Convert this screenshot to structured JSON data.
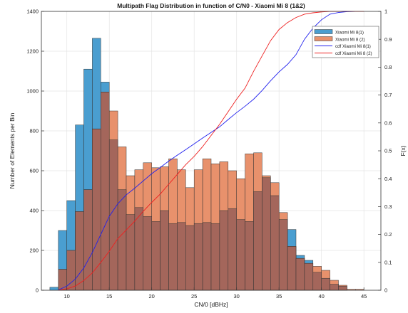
{
  "chart_data": {
    "type": "bar",
    "title": "Multipath Flag Distribution in function of C/N0 - Xiaomi Mi 8 (1&2)",
    "xlabel": "CN/0 [dBHz]",
    "ylabel": "Number of Elements per Bin",
    "y2label": "F(x)",
    "xlim": [
      7,
      47
    ],
    "ylim": [
      0,
      1400
    ],
    "y2lim": [
      0,
      1
    ],
    "xticks": [
      10,
      15,
      20,
      25,
      30,
      35,
      40,
      45
    ],
    "yticks": [
      0,
      200,
      400,
      600,
      800,
      1000,
      1200,
      1400
    ],
    "y2ticks": [
      0,
      0.1,
      0.2,
      0.3,
      0.4,
      0.5,
      0.6,
      0.7,
      0.8,
      0.9,
      1
    ],
    "grid": true,
    "legend_position": "top-right",
    "colors": {
      "hist1_fill": "#4a9ed0",
      "hist2_fill": "#e8916c",
      "overlap_fill": "#a4665b",
      "bar_edge": "#333333",
      "cdf1": "#2020ee",
      "cdf2": "#ee2020",
      "grid": "#e4e4e4",
      "axis": "#333333"
    },
    "bin_edges": [
      8,
      9,
      10,
      11,
      12,
      13,
      14,
      15,
      16,
      17,
      18,
      19,
      20,
      21,
      22,
      23,
      24,
      25,
      26,
      27,
      28,
      29,
      30,
      31,
      32,
      33,
      34,
      35,
      36,
      37,
      38,
      39,
      40,
      41,
      42,
      43,
      44,
      45
    ],
    "series": [
      {
        "name": "Xiaomi Mi 8(1)",
        "kind": "histogram",
        "values": [
          15,
          300,
          450,
          830,
          1110,
          1265,
          1045,
          755,
          505,
          380,
          415,
          370,
          345,
          400,
          335,
          340,
          325,
          335,
          340,
          335,
          400,
          410,
          355,
          345,
          495,
          565,
          475,
          355,
          305,
          175,
          150,
          90,
          60,
          30,
          20,
          0,
          0
        ]
      },
      {
        "name": "Xiaomi Mi 8 (2)",
        "kind": "histogram",
        "values": [
          0,
          105,
          200,
          395,
          505,
          810,
          995,
          900,
          720,
          575,
          605,
          640,
          615,
          620,
          660,
          605,
          515,
          605,
          660,
          635,
          645,
          600,
          560,
          685,
          690,
          575,
          540,
          390,
          220,
          160,
          135,
          120,
          100,
          50,
          25,
          5,
          5
        ]
      },
      {
        "name": "cdf Xiaomi Mi 8(1)",
        "kind": "cdf",
        "x": [
          9,
          10,
          11,
          12,
          13,
          14,
          15,
          16,
          17,
          18,
          19,
          20,
          21,
          22,
          23,
          24,
          25,
          26,
          27,
          28,
          29,
          30,
          31,
          32,
          33,
          34,
          35,
          36,
          37,
          38,
          39,
          40,
          41,
          42,
          43,
          44,
          45
        ],
        "values": [
          0.001,
          0.015,
          0.04,
          0.08,
          0.135,
          0.2,
          0.265,
          0.31,
          0.342,
          0.366,
          0.392,
          0.418,
          0.44,
          0.463,
          0.484,
          0.504,
          0.525,
          0.546,
          0.566,
          0.586,
          0.612,
          0.637,
          0.66,
          0.685,
          0.716,
          0.751,
          0.783,
          0.81,
          0.845,
          0.9,
          0.94,
          0.97,
          0.99,
          0.996,
          0.999,
          1,
          1
        ]
      },
      {
        "name": "cdf Xiaomi Mi 8 (2)",
        "kind": "cdf",
        "x": [
          9,
          10,
          11,
          12,
          13,
          14,
          15,
          16,
          17,
          18,
          19,
          20,
          21,
          22,
          23,
          24,
          25,
          26,
          27,
          28,
          29,
          30,
          31,
          32,
          33,
          34,
          35,
          36,
          37,
          38,
          39,
          40,
          41,
          42,
          43,
          44,
          45
        ],
        "values": [
          0,
          0.005,
          0.015,
          0.035,
          0.062,
          0.1,
          0.14,
          0.185,
          0.216,
          0.248,
          0.283,
          0.315,
          0.345,
          0.38,
          0.415,
          0.45,
          0.48,
          0.515,
          0.555,
          0.595,
          0.64,
          0.685,
          0.725,
          0.785,
          0.84,
          0.895,
          0.935,
          0.96,
          0.978,
          0.99,
          0.995,
          0.998,
          1,
          1,
          1,
          1,
          1
        ]
      }
    ]
  }
}
